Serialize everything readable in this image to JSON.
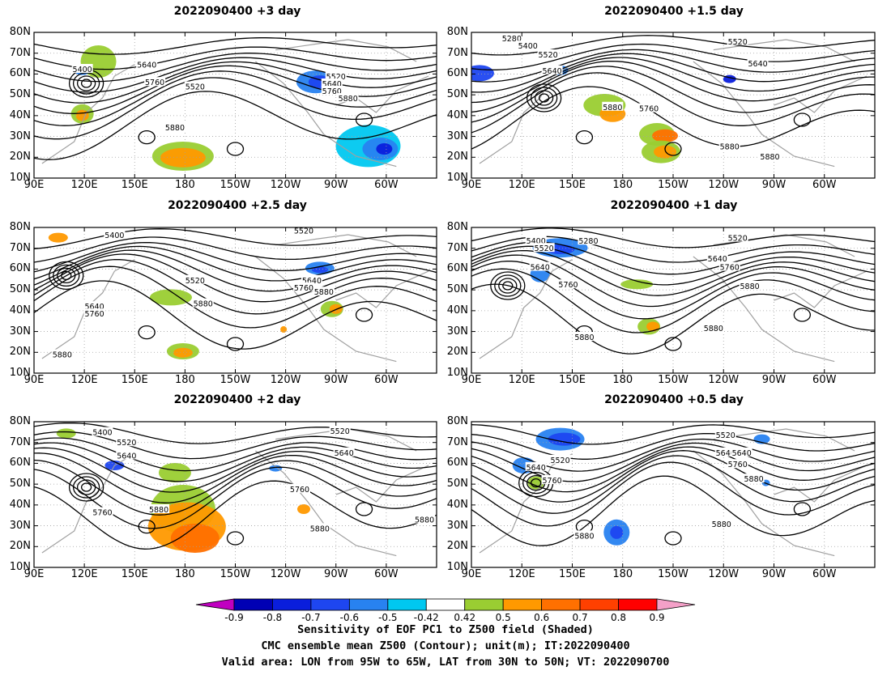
{
  "panels": [
    {
      "title": "2022090400 +3 day",
      "contour_labels": [
        "5400",
        "5640",
        "5760",
        "5520",
        "5520",
        "5640",
        "5760",
        "5880",
        "5880"
      ]
    },
    {
      "title": "2022090400 +1.5 day",
      "contour_labels": [
        "5280",
        "5400",
        "5520",
        "5640",
        "5520",
        "5640",
        "5880",
        "5760",
        "5880",
        "5880"
      ]
    },
    {
      "title": "2022090400 +2.5 day",
      "contour_labels": [
        "5400",
        "5520",
        "5520",
        "5640",
        "5760",
        "5880",
        "5640",
        "5760",
        "5880",
        "5880"
      ]
    },
    {
      "title": "2022090400 +1 day",
      "contour_labels": [
        "5400",
        "5280",
        "5520",
        "5640",
        "5760",
        "5520",
        "5640",
        "5760",
        "5880",
        "5880",
        "5880"
      ]
    },
    {
      "title": "2022090400 +2 day",
      "contour_labels": [
        "5400",
        "5520",
        "5640",
        "5520",
        "5640",
        "5760",
        "5760",
        "5880",
        "5880",
        "5880"
      ]
    },
    {
      "title": "2022090400 +0.5 day",
      "contour_labels": [
        "5520",
        "5640",
        "5640",
        "5520",
        "5760",
        "5640",
        "5760",
        "5880",
        "5880",
        "5880"
      ]
    }
  ],
  "lat_ticks": [
    "80N",
    "70N",
    "60N",
    "50N",
    "40N",
    "30N",
    "20N",
    "10N"
  ],
  "lon_ticks": [
    "90E",
    "120E",
    "150E",
    "180",
    "150W",
    "120W",
    "90W",
    "60W"
  ],
  "colorbar": {
    "labels": [
      "-0.9",
      "-0.8",
      "-0.7",
      "-0.6",
      "-0.5",
      "-0.42",
      "0.42",
      "0.5",
      "0.6",
      "0.7",
      "0.8",
      "0.9"
    ],
    "colors": [
      "#c000c0",
      "#0000b4",
      "#0a1edc",
      "#1e46f0",
      "#2882f0",
      "#00c8f0",
      "#ffffff",
      "#9acd32",
      "#ff9900",
      "#ff7000",
      "#ff4000",
      "#ff0000",
      "#f4a0c8"
    ]
  },
  "caption": {
    "line1": "Sensitivity of EOF PC1 to Z500 field (Shaded)",
    "line2": "CMC ensemble mean Z500 (Contour); unit(m); IT:2022090400",
    "line3": "Valid area: LON from 95W to 65W, LAT from 30N to 50N; VT: 2022090700"
  },
  "colors": {
    "contour": "#000000",
    "coast": "#a0a0a0",
    "grid": "#a0a0a0"
  }
}
